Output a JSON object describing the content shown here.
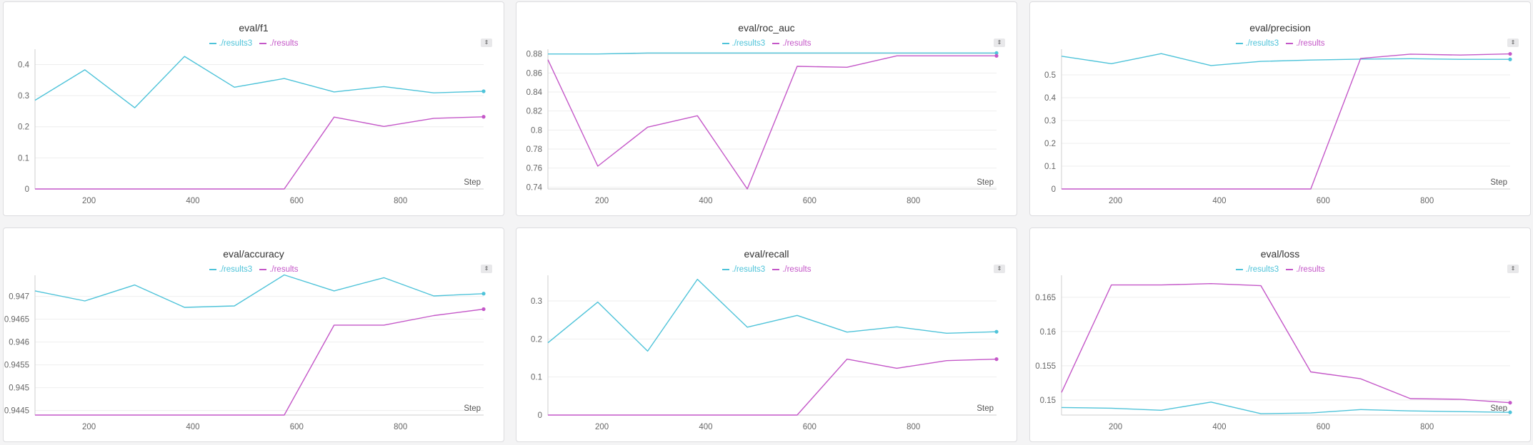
{
  "colors": {
    "results3": "#4ec3d9",
    "results": "#c457c8",
    "grid": "#eeeeee",
    "axis": "#cfcfcf"
  },
  "panels": [
    {
      "title": "eval/f1",
      "legend": [
        "./results3",
        "./results"
      ],
      "step_label": "Step"
    },
    {
      "title": "eval/roc_auc",
      "legend": [
        "./results3",
        "./results"
      ],
      "step_label": "Step"
    },
    {
      "title": "eval/precision",
      "legend": [
        "./results3",
        "./results"
      ],
      "step_label": "Step"
    },
    {
      "title": "eval/accuracy",
      "legend": [
        "./results3",
        "./results"
      ],
      "step_label": "Step"
    },
    {
      "title": "eval/recall",
      "legend": [
        "./results3",
        "./results"
      ],
      "step_label": "Step"
    },
    {
      "title": "eval/loss",
      "legend": [
        "./results3",
        "./results"
      ],
      "step_label": "Step"
    }
  ],
  "chart_data": [
    {
      "type": "line",
      "title": "eval/f1",
      "xlabel": "Step",
      "xlim": [
        96,
        960
      ],
      "ylim": [
        0,
        0.44
      ],
      "xticks": [
        200,
        400,
        600,
        800
      ],
      "yticks": [
        0,
        0.1,
        0.2,
        0.3,
        0.4
      ],
      "yticklabels": [
        "0",
        "0.1",
        "0.2",
        "0.3",
        "0.4"
      ],
      "x": [
        96,
        192,
        288,
        384,
        480,
        576,
        672,
        768,
        864,
        960
      ],
      "series": [
        {
          "name": "./results3",
          "values": [
            0.285,
            0.383,
            0.261,
            0.426,
            0.327,
            0.355,
            0.312,
            0.329,
            0.309,
            0.314
          ]
        },
        {
          "name": "./results",
          "values": [
            0,
            0,
            0,
            0,
            0,
            0,
            0.231,
            0.201,
            0.227,
            0.232
          ]
        }
      ]
    },
    {
      "type": "line",
      "title": "eval/roc_auc",
      "xlabel": "Step",
      "xlim": [
        96,
        960
      ],
      "ylim": [
        0.738,
        0.882
      ],
      "xticks": [
        200,
        400,
        600,
        800
      ],
      "yticks": [
        0.74,
        0.76,
        0.78,
        0.8,
        0.82,
        0.84,
        0.86,
        0.88
      ],
      "yticklabels": [
        "0.74",
        "0.76",
        "0.78",
        "0.8",
        "0.82",
        "0.84",
        "0.86",
        "0.88"
      ],
      "x": [
        96,
        192,
        288,
        384,
        480,
        576,
        672,
        768,
        864,
        960
      ],
      "series": [
        {
          "name": "./results3",
          "values": [
            0.88,
            0.88,
            0.881,
            0.881,
            0.881,
            0.881,
            0.881,
            0.881,
            0.881,
            0.881
          ]
        },
        {
          "name": "./results",
          "values": [
            0.874,
            0.762,
            0.803,
            0.815,
            0.738,
            0.867,
            0.866,
            0.878,
            0.878,
            0.878
          ]
        }
      ]
    },
    {
      "type": "line",
      "title": "eval/precision",
      "xlabel": "Step",
      "xlim": [
        96,
        960
      ],
      "ylim": [
        0,
        0.6
      ],
      "xticks": [
        200,
        400,
        600,
        800
      ],
      "yticks": [
        0,
        0.1,
        0.2,
        0.3,
        0.4,
        0.5
      ],
      "yticklabels": [
        "0",
        "0.1",
        "0.2",
        "0.3",
        "0.4",
        "0.5"
      ],
      "x": [
        96,
        192,
        288,
        384,
        480,
        576,
        672,
        768,
        864,
        960
      ],
      "series": [
        {
          "name": "./results3",
          "values": [
            0.582,
            0.549,
            0.593,
            0.541,
            0.559,
            0.565,
            0.569,
            0.571,
            0.568,
            0.568
          ]
        },
        {
          "name": "./results",
          "values": [
            0,
            0,
            0,
            0,
            0,
            0,
            0.572,
            0.591,
            0.587,
            0.592
          ]
        }
      ]
    },
    {
      "type": "line",
      "title": "eval/accuracy",
      "xlabel": "Step",
      "xlim": [
        96,
        960
      ],
      "ylim": [
        0.9444,
        0.9474
      ],
      "xticks": [
        200,
        400,
        600,
        800
      ],
      "yticks": [
        0.9445,
        0.945,
        0.9455,
        0.946,
        0.9465,
        0.947
      ],
      "yticklabels": [
        "0.9445",
        "0.945",
        "0.9455",
        "0.946",
        "0.9465",
        "0.947"
      ],
      "x": [
        96,
        192,
        288,
        384,
        480,
        576,
        672,
        768,
        864,
        960
      ],
      "series": [
        {
          "name": "./results3",
          "values": [
            0.94712,
            0.9469,
            0.94725,
            0.94676,
            0.94679,
            0.94747,
            0.94712,
            0.94741,
            0.94701,
            0.94706
          ]
        },
        {
          "name": "./results",
          "values": [
            0.9444,
            0.9444,
            0.9444,
            0.9444,
            0.9444,
            0.9444,
            0.94637,
            0.94637,
            0.94658,
            0.94672
          ]
        }
      ]
    },
    {
      "type": "line",
      "title": "eval/recall",
      "xlabel": "Step",
      "xlim": [
        96,
        960
      ],
      "ylim": [
        0,
        0.36
      ],
      "xticks": [
        200,
        400,
        600,
        800
      ],
      "yticks": [
        0,
        0.1,
        0.2,
        0.3
      ],
      "yticklabels": [
        "0",
        "0.1",
        "0.2",
        "0.3"
      ],
      "x": [
        96,
        192,
        288,
        384,
        480,
        576,
        672,
        768,
        864,
        960
      ],
      "series": [
        {
          "name": "./results3",
          "values": [
            0.19,
            0.297,
            0.168,
            0.357,
            0.231,
            0.262,
            0.218,
            0.232,
            0.215,
            0.219
          ]
        },
        {
          "name": "./results",
          "values": [
            0,
            0,
            0,
            0,
            0,
            0,
            0.147,
            0.123,
            0.143,
            0.147
          ]
        }
      ]
    },
    {
      "type": "line",
      "title": "eval/loss",
      "xlabel": "Step",
      "xlim": [
        96,
        960
      ],
      "ylim": [
        0.1478,
        0.1678
      ],
      "xticks": [
        200,
        400,
        600,
        800
      ],
      "yticks": [
        0.15,
        0.155,
        0.16,
        0.165
      ],
      "yticklabels": [
        "0.15",
        "0.155",
        "0.16",
        "0.165"
      ],
      "x": [
        96,
        192,
        288,
        384,
        480,
        576,
        672,
        768,
        864,
        960
      ],
      "series": [
        {
          "name": "./results3",
          "values": [
            0.1489,
            0.1488,
            0.1485,
            0.1497,
            0.148,
            0.1481,
            0.1486,
            0.1484,
            0.1483,
            0.1482
          ]
        },
        {
          "name": "./results",
          "values": [
            0.1511,
            0.1668,
            0.1668,
            0.167,
            0.1667,
            0.1541,
            0.1531,
            0.1502,
            0.1501,
            0.1496
          ]
        }
      ]
    }
  ]
}
